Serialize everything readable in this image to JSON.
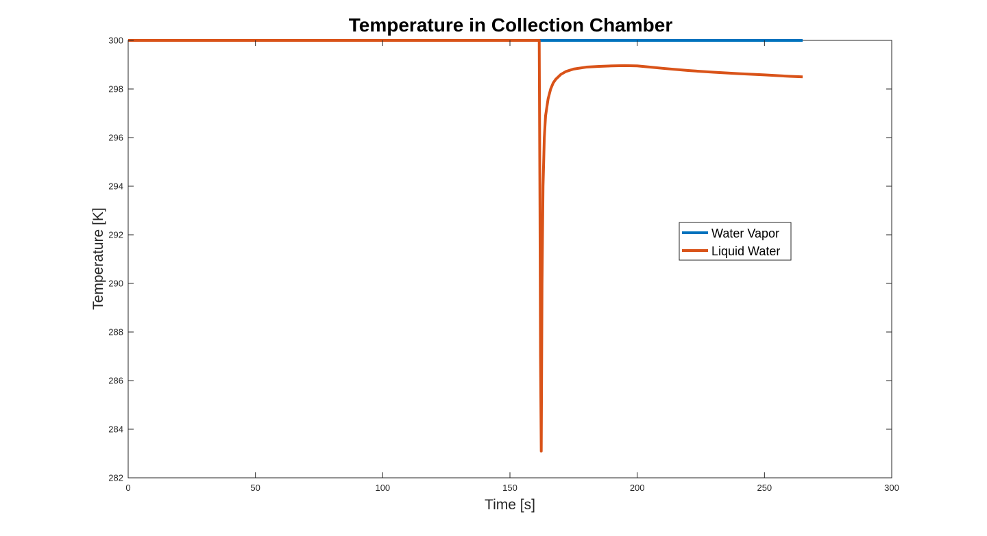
{
  "chart_data": {
    "type": "line",
    "title": "Temperature in Collection Chamber",
    "xlabel": "Time [s]",
    "ylabel": "Temperature [K]",
    "xlim": [
      0,
      300
    ],
    "ylim": [
      282,
      300
    ],
    "xticks": [
      0,
      50,
      100,
      150,
      200,
      250,
      300
    ],
    "yticks": [
      282,
      284,
      286,
      288,
      290,
      292,
      294,
      296,
      298,
      300
    ],
    "grid": false,
    "legend_position": "center-right",
    "series": [
      {
        "name": "Water Vapor",
        "color": "#0072BD",
        "x": [
          0,
          162,
          265
        ],
        "y": [
          300,
          300,
          300
        ]
      },
      {
        "name": "Liquid Water",
        "color": "#D95319",
        "x": [
          0,
          161.5,
          161.8,
          162.0,
          162.3,
          162.6,
          163.0,
          163.5,
          164,
          165,
          166,
          167,
          168,
          170,
          172,
          175,
          180,
          185,
          190,
          195,
          200,
          205,
          210,
          220,
          230,
          240,
          250,
          260,
          265
        ],
        "y": [
          300,
          300,
          293,
          287,
          283.1,
          290,
          294,
          296,
          296.9,
          297.6,
          298.0,
          298.25,
          298.4,
          298.6,
          298.72,
          298.82,
          298.9,
          298.93,
          298.95,
          298.96,
          298.95,
          298.9,
          298.85,
          298.76,
          298.69,
          298.63,
          298.58,
          298.52,
          298.5
        ]
      }
    ]
  }
}
